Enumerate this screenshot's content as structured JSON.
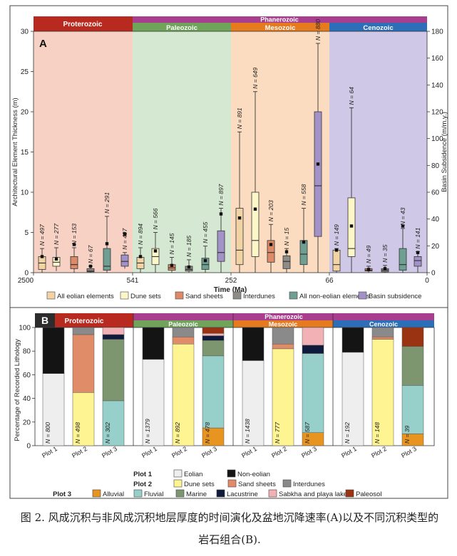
{
  "colors": {
    "eolian": "#f1d3a4",
    "dune": "#fdf6c8",
    "sand_sheet": "#dd8a68",
    "interdune": "#8f8b86",
    "non_eolian": "#6f9e93",
    "subsidence": "#a392c8",
    "proterozoic": "#b82a1f",
    "phanerozoic": "#a93e8e",
    "paleozoic": "#6fa45a",
    "mesozoic": "#e67a1e",
    "cenozoic": "#2c6fb8",
    "bg_proterozoic": "#f7d2c4",
    "bg_paleozoic": "#d5e8d1",
    "bg_mesozoic": "#fbdcc0",
    "bg_cenozoic": "#cfc8e6",
    "p2_eolian": "#eeeeee",
    "p2_noneolian": "#141414",
    "p2_dune": "#fef592",
    "p2_sandsheet": "#e08c69",
    "p2_interdune": "#8a8a8a",
    "p3_alluvial": "#e89420",
    "p3_fluvial": "#97cfcb",
    "p3_marine": "#7d9670",
    "p3_lacustrine": "#101a3a",
    "p3_sabkha": "#f2b2b5",
    "p3_paleosol": "#9a3311"
  },
  "chart_data": [
    {
      "type": "boxplot",
      "panel_label": "A",
      "xlabel": "Time (Ma)",
      "ylabel": "Architectural Element Thickness (m)",
      "y2label": "Basin Subsidence (m/m.y.)",
      "ylim": [
        0,
        30
      ],
      "y2lim": [
        0,
        180
      ],
      "yticks": [
        0,
        5,
        10,
        15,
        20,
        25,
        30
      ],
      "y2ticks": [
        0,
        20,
        40,
        60,
        80,
        100,
        120,
        140,
        160,
        180
      ],
      "xticks": [
        "2500",
        "541",
        "252",
        "66",
        "0"
      ],
      "eons": [
        {
          "label": "Proterozoic"
        },
        {
          "label": "Phanerozoic"
        }
      ],
      "eras": [
        {
          "label": "Paleozoic"
        },
        {
          "label": "Mesozoic"
        },
        {
          "label": "Cenozoic"
        }
      ],
      "legend": [
        "All eolian elements",
        "Dune sets",
        "Sand sheets",
        "Interdunes",
        "All non-eolian elements",
        "Basin subsidence"
      ],
      "groups": [
        {
          "era": "Proterozoic",
          "boxes": [
            {
              "series": "All eolian elements",
              "n": "N = 497",
              "whisker_low": 0,
              "q1": 0.4,
              "median": 1.2,
              "q3": 2.0,
              "whisker_high": 3.0,
              "mean": 2.0
            },
            {
              "series": "Dune sets",
              "n": "N = 277",
              "whisker_low": 0.2,
              "q1": 0.8,
              "median": 1.3,
              "q3": 1.9,
              "whisker_high": 3.1,
              "mean": 1.7
            },
            {
              "series": "Sand sheets",
              "n": "N = 153",
              "whisker_low": 0,
              "q1": 0.5,
              "median": 1.0,
              "q3": 2.0,
              "whisker_high": 3.1,
              "mean": 3.5
            },
            {
              "series": "Interdunes",
              "n": "N = 67",
              "whisker_low": 0,
              "q1": 0.1,
              "median": 0.2,
              "q3": 0.5,
              "whisker_high": 0.8,
              "mean": 0.8
            },
            {
              "series": "All non-eolian elements",
              "n": "N = 291",
              "whisker_low": 0,
              "q1": 0.3,
              "median": 0.8,
              "q3": 3.0,
              "whisker_high": 7.0,
              "mean": 3.6
            },
            {
              "series": "Basin subsidence",
              "n": "N = 497",
              "whisker_low": 0.5,
              "q1": 0.8,
              "median": 1.4,
              "q3": 2.2,
              "whisker_high": 2.5,
              "mean": 4.8
            }
          ]
        },
        {
          "era": "Paleozoic",
          "boxes": [
            {
              "series": "All eolian elements",
              "n": "N = 894",
              "whisker_low": 0,
              "q1": 0.5,
              "median": 1.2,
              "q3": 1.9,
              "whisker_high": 3.1,
              "mean": 2.0
            },
            {
              "series": "Dune sets",
              "n": "N = 566",
              "whisker_low": 0,
              "q1": 1.0,
              "median": 2.0,
              "q3": 3.0,
              "whisker_high": 5.0,
              "mean": 2.7
            },
            {
              "series": "Sand sheets",
              "n": "N = 145",
              "whisker_low": 0,
              "q1": 0.3,
              "median": 0.6,
              "q3": 1.0,
              "whisker_high": 1.9,
              "mean": 0.9
            },
            {
              "series": "Interdunes",
              "n": "N = 185",
              "whisker_low": 0,
              "q1": 0.2,
              "median": 0.4,
              "q3": 0.8,
              "whisker_high": 1.6,
              "mean": 0.7
            },
            {
              "series": "All non-eolian elements",
              "n": "N = 455",
              "whisker_low": 0,
              "q1": 0.4,
              "median": 1.0,
              "q3": 1.8,
              "whisker_high": 3.3,
              "mean": 1.5
            },
            {
              "series": "Basin subsidence",
              "n": "N = 897",
              "whisker_low": 0,
              "q1": 1.4,
              "median": 2.5,
              "q3": 5.2,
              "whisker_high": 8.0,
              "mean": 7.3
            }
          ]
        },
        {
          "era": "Mesozoic",
          "boxes": [
            {
              "series": "All eolian elements",
              "n": "N = 891",
              "whisker_low": 0,
              "q1": 1.0,
              "median": 2.8,
              "q3": 8.0,
              "whisker_high": 17.5,
              "mean": 6.8
            },
            {
              "series": "Dune sets",
              "n": "N = 649",
              "whisker_low": 0,
              "q1": 2.0,
              "median": 4.0,
              "q3": 10.0,
              "whisker_high": 22.5,
              "mean": 7.9
            },
            {
              "series": "Sand sheets",
              "n": "N = 203",
              "whisker_low": 0,
              "q1": 1.3,
              "median": 2.5,
              "q3": 4.0,
              "whisker_high": 6.0,
              "mean": 3.5
            },
            {
              "series": "Interdunes",
              "n": "N = 15",
              "whisker_low": 0,
              "q1": 0.5,
              "median": 1.4,
              "q3": 2.1,
              "whisker_high": 3.0,
              "mean": 2.6
            },
            {
              "series": "All non-eolian elements",
              "n": "N = 558",
              "whisker_low": 0,
              "q1": 1.0,
              "median": 2.3,
              "q3": 4.0,
              "whisker_high": 8.0,
              "mean": 3.8
            },
            {
              "series": "Basin subsidence",
              "n": "N = 880",
              "whisker_low": 0,
              "q1": 4.5,
              "median": 10.8,
              "q3": 20.0,
              "whisker_high": 28.5,
              "mean": 13.5
            }
          ]
        },
        {
          "era": "Cenozoic",
          "boxes": [
            {
              "series": "All eolian elements",
              "n": "N = 149",
              "whisker_low": 0,
              "q1": 0.2,
              "median": 1.0,
              "q3": 2.8,
              "whisker_high": 3.0,
              "mean": 2.8
            },
            {
              "series": "Dune sets",
              "n": "N = 64",
              "whisker_low": 0,
              "q1": 2.0,
              "median": 3.0,
              "q3": 9.3,
              "whisker_high": 20.5,
              "mean": 5.8
            },
            {
              "series": "Sand sheets",
              "n": "N = 49",
              "whisker_low": 0,
              "q1": 0.2,
              "median": 0.3,
              "q3": 0.5,
              "whisker_high": 0.8,
              "mean": 0.4
            },
            {
              "series": "Interdunes",
              "n": "N = 35",
              "whisker_low": 0,
              "q1": 0.1,
              "median": 0.3,
              "q3": 0.5,
              "whisker_high": 0.9,
              "mean": 0.5
            },
            {
              "series": "All non-eolian elements",
              "n": "N = 43",
              "whisker_low": 0,
              "q1": 0.3,
              "median": 1.0,
              "q3": 3.0,
              "whisker_high": 5.5,
              "mean": 5.8
            },
            {
              "series": "Basin subsidence",
              "n": "N = 141",
              "whisker_low": 0,
              "q1": 0.8,
              "median": 1.5,
              "q3": 2.0,
              "whisker_high": 2.6,
              "mean": 2.5
            }
          ]
        }
      ]
    },
    {
      "type": "stacked_bar",
      "panel_label": "B",
      "ylabel": "Percentage of Recorded Lithology",
      "ylim": [
        0,
        100
      ],
      "yticks": [
        0,
        20,
        40,
        60,
        80,
        100
      ],
      "plot_labels": [
        "Plot 1",
        "Plot 2",
        "Plot 3"
      ],
      "eons": [
        {
          "label": "Proterozoic"
        },
        {
          "label": "Phanerozoic"
        }
      ],
      "eras": [
        {
          "label": "Paleozoic"
        },
        {
          "label": "Mesozoic"
        },
        {
          "label": "Cenozoic"
        }
      ],
      "legend": [
        {
          "title": "Plot 1",
          "items": [
            "Eolian",
            "Non-eolian"
          ]
        },
        {
          "title": "Plot 2",
          "items": [
            "Dune sets",
            "Sand sheets",
            "Interdunes"
          ]
        },
        {
          "title": "Plot 3",
          "items": [
            "Alluvial",
            "Fluvial",
            "Marine",
            "Lacustrine",
            "Sabkha and playa lake",
            "Paleosol"
          ]
        }
      ],
      "groups": [
        {
          "era": "Proterozoic",
          "plots": [
            {
              "plot": "Plot 1",
              "n": "N = 800",
              "segments": [
                [
                  "Eolian",
                  61
                ],
                [
                  "Non-eolian",
                  39
                ]
              ]
            },
            {
              "plot": "Plot 2",
              "n": "N = 498",
              "segments": [
                [
                  "Dune sets",
                  45
                ],
                [
                  "Sand sheets",
                  49
                ],
                [
                  "Interdunes",
                  6
                ]
              ]
            },
            {
              "plot": "Plot 3",
              "n": "N = 302",
              "segments": [
                [
                  "Alluvial",
                  0
                ],
                [
                  "Fluvial",
                  38
                ],
                [
                  "Marine",
                  52
                ],
                [
                  "Lacustrine",
                  4
                ],
                [
                  "Sabkha and playa lake",
                  6
                ],
                [
                  "Paleosol",
                  0
                ]
              ]
            }
          ]
        },
        {
          "era": "Paleozoic",
          "plots": [
            {
              "plot": "Plot 1",
              "n": "N = 1379",
              "segments": [
                [
                  "Eolian",
                  73
                ],
                [
                  "Non-eolian",
                  27
                ]
              ]
            },
            {
              "plot": "Plot 2",
              "n": "N = 892",
              "segments": [
                [
                  "Dune sets",
                  86
                ],
                [
                  "Sand sheets",
                  6
                ],
                [
                  "Interdunes",
                  8
                ]
              ]
            },
            {
              "plot": "Plot 3",
              "n": "N = 478",
              "segments": [
                [
                  "Alluvial",
                  15
                ],
                [
                  "Fluvial",
                  61
                ],
                [
                  "Marine",
                  13
                ],
                [
                  "Lacustrine",
                  4
                ],
                [
                  "Sabkha and playa lake",
                  2
                ],
                [
                  "Paleosol",
                  5
                ]
              ]
            }
          ]
        },
        {
          "era": "Mesozoic",
          "plots": [
            {
              "plot": "Plot 1",
              "n": "N = 1438",
              "segments": [
                [
                  "Eolian",
                  72
                ],
                [
                  "Non-eolian",
                  28
                ]
              ]
            },
            {
              "plot": "Plot 2",
              "n": "N = 777",
              "segments": [
                [
                  "Dune sets",
                  82
                ],
                [
                  "Sand sheets",
                  4
                ],
                [
                  "Interdunes",
                  14
                ]
              ]
            },
            {
              "plot": "Plot 3",
              "n": "N = 587",
              "segments": [
                [
                  "Alluvial",
                  11
                ],
                [
                  "Fluvial",
                  67
                ],
                [
                  "Marine",
                  0
                ],
                [
                  "Lacustrine",
                  7
                ],
                [
                  "Sabkha and playa lake",
                  15
                ],
                [
                  "Paleosol",
                  0
                ]
              ]
            }
          ]
        },
        {
          "era": "Cenozoic",
          "plots": [
            {
              "plot": "Plot 1",
              "n": "N = 192",
              "segments": [
                [
                  "Eolian",
                  79
                ],
                [
                  "Non-eolian",
                  21
                ]
              ]
            },
            {
              "plot": "Plot 2",
              "n": "N = 148",
              "segments": [
                [
                  "Dune sets",
                  90
                ],
                [
                  "Sand sheets",
                  2
                ],
                [
                  "Interdunes",
                  8
                ]
              ]
            },
            {
              "plot": "Plot 3",
              "n": "N = 39",
              "segments": [
                [
                  "Alluvial",
                  10
                ],
                [
                  "Fluvial",
                  41
                ],
                [
                  "Marine",
                  33
                ],
                [
                  "Lacustrine",
                  0
                ],
                [
                  "Sabkha and playa lake",
                  0
                ],
                [
                  "Paleosol",
                  16
                ]
              ]
            }
          ]
        }
      ]
    }
  ],
  "caption": "图 2. 风成沉积与非风成沉积地层厚度的时间演化及盆地沉降速率(A)以及不同沉积类型的岩石组合(B)."
}
